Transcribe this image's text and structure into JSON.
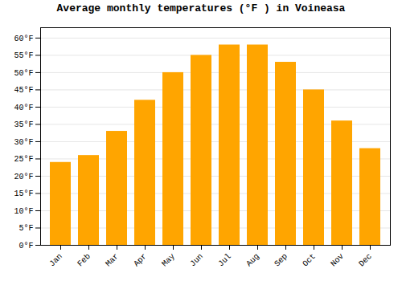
{
  "chart_data": {
    "type": "bar",
    "title": "Average monthly temperatures (°F ) in Voineasa",
    "categories": [
      "Jan",
      "Feb",
      "Mar",
      "Apr",
      "May",
      "Jun",
      "Jul",
      "Aug",
      "Sep",
      "Oct",
      "Nov",
      "Dec"
    ],
    "values": [
      24,
      26,
      33,
      42,
      50,
      55,
      58,
      58,
      53,
      45,
      36,
      28
    ],
    "color": "#FFA500",
    "ylim": [
      0,
      63
    ],
    "yticks": [
      {
        "value": 0,
        "label": "0°F"
      },
      {
        "value": 5,
        "label": "5°F"
      },
      {
        "value": 10,
        "label": "10°F"
      },
      {
        "value": 15,
        "label": "15°F"
      },
      {
        "value": 20,
        "label": "20°F"
      },
      {
        "value": 25,
        "label": "25°F"
      },
      {
        "value": 30,
        "label": "30°F"
      },
      {
        "value": 35,
        "label": "35°F"
      },
      {
        "value": 40,
        "label": "40°F"
      },
      {
        "value": 45,
        "label": "45°F"
      },
      {
        "value": 50,
        "label": "50°F"
      },
      {
        "value": 55,
        "label": "55°F"
      },
      {
        "value": 60,
        "label": "60°F"
      }
    ],
    "grid": true
  }
}
